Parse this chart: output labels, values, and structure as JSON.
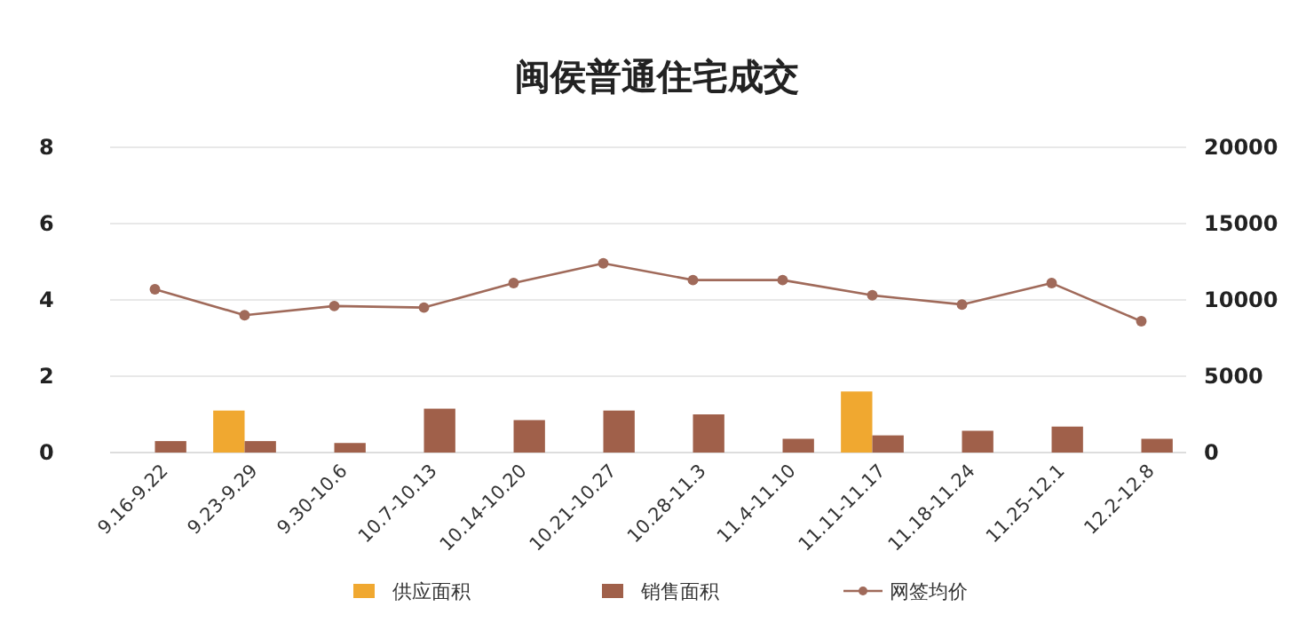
{
  "chart_data": {
    "type": "bar",
    "title": "闽侯普通住宅成交",
    "categories": [
      "9.16-9.22",
      "9.23-9.29",
      "9.30-10.6",
      "10.7-10.13",
      "10.14-10.20",
      "10.21-10.27",
      "10.28-11.3",
      "11.4-11.10",
      "11.11-11.17",
      "11.18-11.24",
      "11.25-12.1",
      "12.2-12.8"
    ],
    "series": [
      {
        "name": "供应面积",
        "color": "#f0a830",
        "values": [
          null,
          1.1,
          null,
          null,
          null,
          null,
          null,
          null,
          1.6,
          null,
          null,
          null
        ]
      },
      {
        "name": "销售面积",
        "color": "#a0604a",
        "values": [
          0.3,
          0.3,
          0.25,
          1.15,
          0.85,
          1.1,
          1.0,
          0.36,
          0.45,
          0.57,
          0.68,
          0.36
        ]
      },
      {
        "name": "网签均价",
        "type": "line",
        "axis": "y2",
        "color": "#a06a5a",
        "marker": "circle",
        "values": [
          10700,
          9000,
          9600,
          9500,
          11100,
          12400,
          11300,
          11300,
          10300,
          9700,
          11100,
          8600
        ]
      }
    ],
    "ylim": [
      0,
      8
    ],
    "yticks": [
      0,
      2,
      4,
      6,
      8
    ],
    "y2lim": [
      0,
      20000
    ],
    "y2ticks": [
      0,
      5000,
      10000,
      15000,
      20000
    ],
    "grid": "y",
    "legend": "bottom"
  }
}
